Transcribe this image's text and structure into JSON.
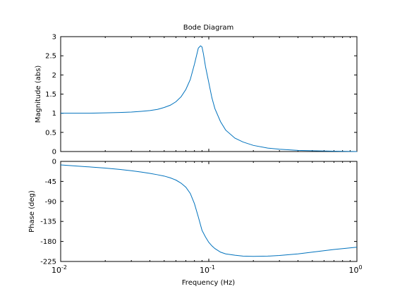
{
  "chart_data": {
    "type": "line",
    "title": "Bode Diagram",
    "xlabel": "Frequency  (Hz)",
    "xscale": "log",
    "xlim": [
      0.01,
      1.0
    ],
    "x_ticks": [
      0.01,
      0.1,
      1.0
    ],
    "x_tick_labels": [
      [
        "10",
        "-2"
      ],
      [
        "10",
        "-1"
      ],
      [
        "10",
        "0"
      ]
    ],
    "grid": "dotted, major and minor",
    "line_color": "#0072bd",
    "panels": [
      {
        "id": "magnitude",
        "ylabel": "Magnitude (abs)",
        "ylim": [
          0,
          3
        ],
        "y_ticks": [
          0,
          0.5,
          1,
          1.5,
          2,
          2.5,
          3
        ],
        "y_tick_labels": [
          "0",
          "0.5",
          "1",
          "1.5",
          "2",
          "2.5",
          "3"
        ],
        "x": [
          0.01,
          0.015,
          0.02,
          0.025,
          0.03,
          0.035,
          0.04,
          0.045,
          0.05,
          0.055,
          0.06,
          0.065,
          0.07,
          0.075,
          0.08,
          0.085,
          0.088,
          0.09,
          0.092,
          0.095,
          0.1,
          0.105,
          0.11,
          0.12,
          0.13,
          0.15,
          0.17,
          0.2,
          0.25,
          0.3,
          0.4,
          0.5,
          0.7,
          1.0
        ],
        "y": [
          1.0,
          1.0,
          1.01,
          1.02,
          1.03,
          1.05,
          1.07,
          1.1,
          1.15,
          1.21,
          1.3,
          1.43,
          1.62,
          1.88,
          2.28,
          2.7,
          2.76,
          2.73,
          2.55,
          2.22,
          1.8,
          1.4,
          1.12,
          0.78,
          0.56,
          0.35,
          0.25,
          0.16,
          0.09,
          0.06,
          0.03,
          0.02,
          0.01,
          0.0
        ]
      },
      {
        "id": "phase",
        "ylabel": "Phase (deg)",
        "ylim": [
          -225,
          0
        ],
        "y_ticks": [
          0,
          -45,
          -90,
          -135,
          -180,
          -225
        ],
        "y_tick_labels": [
          "0",
          "-45",
          "-90",
          "-135",
          "-180",
          "-225"
        ],
        "x": [
          0.01,
          0.015,
          0.02,
          0.025,
          0.03,
          0.035,
          0.04,
          0.045,
          0.05,
          0.055,
          0.06,
          0.065,
          0.07,
          0.075,
          0.08,
          0.085,
          0.09,
          0.095,
          0.1,
          0.105,
          0.11,
          0.12,
          0.13,
          0.15,
          0.17,
          0.2,
          0.25,
          0.3,
          0.4,
          0.5,
          0.7,
          1.0
        ],
        "y": [
          -8,
          -12,
          -15,
          -18,
          -21,
          -24,
          -27,
          -30,
          -33,
          -37,
          -42,
          -49,
          -58,
          -72,
          -95,
          -125,
          -155,
          -170,
          -182,
          -190,
          -196,
          -204,
          -208,
          -211,
          -213,
          -213.5,
          -213,
          -211.5,
          -208,
          -204,
          -198,
          -193
        ]
      }
    ]
  }
}
